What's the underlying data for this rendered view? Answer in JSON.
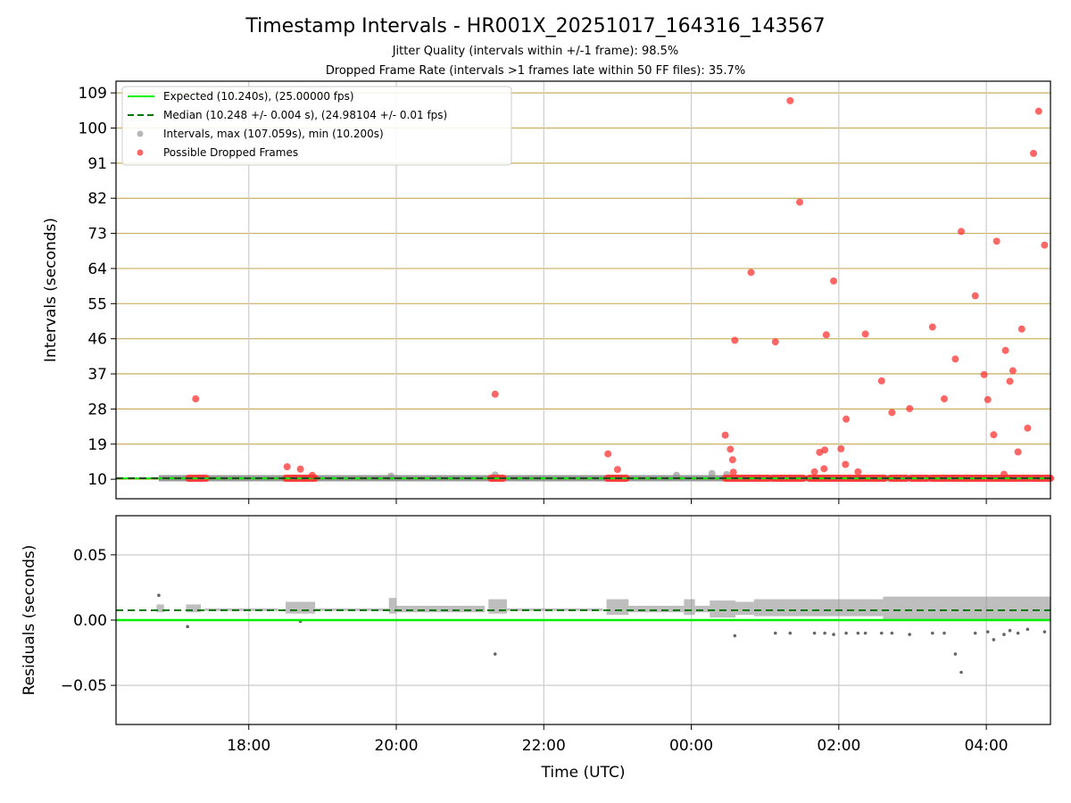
{
  "title": "Timestamp Intervals - HR001X_20251017_164316_143567",
  "subtitle1": "Jitter Quality (intervals within +/-1 frame): 98.5%",
  "subtitle2": "Dropped Frame Rate (intervals >1 frames late within 50 FF files): 35.7%",
  "colors": {
    "expected": "#00ee00",
    "median": "#007700",
    "intervals": "#888888",
    "dropped": "#ff3333",
    "hgrid": "#c8b060",
    "vgrid": "#cccccc"
  },
  "chart_data": [
    {
      "type": "scatter",
      "name": "intervals",
      "ylabel": "Intervals (seconds)",
      "xlabel": "",
      "ylim": [
        5.0,
        112.0
      ],
      "xlim": [
        16.2,
        28.87
      ],
      "yticks": [
        10,
        19,
        28,
        37,
        46,
        55,
        64,
        73,
        82,
        91,
        100,
        109
      ],
      "xticks": [
        18,
        20,
        22,
        24,
        26,
        28
      ],
      "xtick_labels": [
        "18:00",
        "20:00",
        "22:00",
        "00:00",
        "02:00",
        "04:00"
      ],
      "legend": {
        "position": "top-left",
        "entries": [
          "Expected (10.240s), (25.00000 fps)",
          "Median (10.248 +/- 0.004 s), (24.98104 +/- 0.01 fps)",
          "Intervals, max (107.059s), min (10.200s)",
          "Possible Dropped Frames"
        ]
      },
      "expected": 10.24,
      "median": 10.248,
      "interval_line": {
        "x_start": 16.78,
        "x_end": 28.87,
        "value": 10.25
      },
      "intervals_other": [
        [
          19.93,
          10.8
        ],
        [
          21.34,
          11.1
        ],
        [
          23.8,
          11.0
        ],
        [
          24.28,
          11.5
        ],
        [
          24.48,
          11.2
        ]
      ],
      "dropped_points": [
        [
          17.28,
          30.6
        ],
        [
          18.52,
          13.2
        ],
        [
          18.7,
          12.6
        ],
        [
          18.86,
          11.0
        ],
        [
          21.34,
          31.8
        ],
        [
          22.87,
          16.5
        ],
        [
          23.0,
          12.5
        ],
        [
          24.46,
          21.3
        ],
        [
          24.53,
          17.7
        ],
        [
          24.56,
          15.0
        ],
        [
          24.57,
          11.8
        ],
        [
          24.59,
          45.6
        ],
        [
          24.81,
          63.0
        ],
        [
          25.14,
          45.2
        ],
        [
          25.34,
          107.0
        ],
        [
          25.47,
          81.0
        ],
        [
          25.67,
          11.9
        ],
        [
          25.74,
          16.9
        ],
        [
          25.8,
          12.7
        ],
        [
          25.81,
          17.5
        ],
        [
          25.83,
          47.0
        ],
        [
          25.93,
          60.8
        ],
        [
          26.03,
          17.8
        ],
        [
          26.09,
          13.8
        ],
        [
          26.1,
          25.4
        ],
        [
          26.26,
          11.9
        ],
        [
          26.36,
          47.2
        ],
        [
          26.58,
          35.2
        ],
        [
          26.72,
          27.1
        ],
        [
          26.96,
          28.1
        ],
        [
          27.27,
          49.0
        ],
        [
          27.43,
          30.6
        ],
        [
          27.58,
          40.8
        ],
        [
          27.66,
          73.5
        ],
        [
          27.85,
          57.0
        ],
        [
          27.97,
          36.8
        ],
        [
          28.02,
          30.4
        ],
        [
          28.1,
          21.4
        ],
        [
          28.14,
          71.0
        ],
        [
          28.24,
          11.3
        ],
        [
          28.26,
          43.0
        ],
        [
          28.32,
          35.1
        ],
        [
          28.36,
          37.8
        ],
        [
          28.43,
          17.0
        ],
        [
          28.48,
          48.5
        ],
        [
          28.56,
          23.1
        ],
        [
          28.64,
          93.5
        ],
        [
          28.71,
          104.3
        ],
        [
          28.79,
          70.0
        ]
      ],
      "dropped_clusters": [
        [
          17.18,
          17.42
        ],
        [
          18.5,
          18.9
        ],
        [
          21.28,
          21.45
        ],
        [
          22.86,
          23.12
        ],
        [
          24.46,
          25.05
        ],
        [
          25.1,
          25.52
        ],
        [
          25.6,
          26.62
        ],
        [
          26.7,
          26.92
        ],
        [
          26.98,
          27.2
        ],
        [
          27.25,
          28.87
        ]
      ],
      "dropped_value": 10.25
    },
    {
      "type": "scatter",
      "name": "residuals",
      "ylabel": "Residuals (seconds)",
      "xlabel": "Time (UTC)",
      "ylim": [
        -0.08,
        0.08
      ],
      "xlim": [
        16.2,
        28.87
      ],
      "yticks": [
        -0.05,
        0.0,
        0.05
      ],
      "ytick_labels": [
        "−0.05",
        "0.00",
        "0.05"
      ],
      "xticks": [
        18,
        20,
        22,
        24,
        26,
        28
      ],
      "xtick_labels": [
        "18:00",
        "20:00",
        "22:00",
        "00:00",
        "02:00",
        "04:00"
      ],
      "expected_residual": 0.0,
      "median_residual": 0.0075,
      "outliers": [
        [
          16.78,
          0.019
        ],
        [
          17.17,
          -0.005
        ],
        [
          18.7,
          -0.001
        ],
        [
          21.34,
          -0.026
        ],
        [
          24.59,
          -0.012
        ],
        [
          25.14,
          -0.01
        ],
        [
          25.34,
          -0.01
        ],
        [
          25.67,
          -0.01
        ],
        [
          25.81,
          -0.01
        ],
        [
          25.93,
          -0.011
        ],
        [
          26.1,
          -0.01
        ],
        [
          26.26,
          -0.01
        ],
        [
          26.36,
          -0.01
        ],
        [
          26.58,
          -0.01
        ],
        [
          26.72,
          -0.01
        ],
        [
          26.96,
          -0.011
        ],
        [
          27.27,
          -0.01
        ],
        [
          27.43,
          -0.01
        ],
        [
          27.58,
          -0.026
        ],
        [
          27.66,
          -0.04
        ],
        [
          27.85,
          -0.01
        ],
        [
          28.02,
          -0.009
        ],
        [
          28.1,
          -0.015
        ],
        [
          28.24,
          -0.011
        ],
        [
          28.32,
          -0.008
        ],
        [
          28.43,
          -0.01
        ],
        [
          28.56,
          -0.007
        ],
        [
          28.79,
          -0.009
        ]
      ],
      "band_segments": [
        [
          16.75,
          16.85,
          0.006,
          0.012
        ],
        [
          17.15,
          17.35,
          0.006,
          0.012
        ],
        [
          17.4,
          18.4,
          0.007,
          0.009
        ],
        [
          18.5,
          18.9,
          0.005,
          0.014
        ],
        [
          18.9,
          19.9,
          0.007,
          0.009
        ],
        [
          19.9,
          20.0,
          0.005,
          0.017
        ],
        [
          20.0,
          21.2,
          0.006,
          0.011
        ],
        [
          21.25,
          21.5,
          0.005,
          0.016
        ],
        [
          21.5,
          22.8,
          0.007,
          0.009
        ],
        [
          22.85,
          23.15,
          0.004,
          0.016
        ],
        [
          23.15,
          23.9,
          0.006,
          0.011
        ],
        [
          23.9,
          24.05,
          0.004,
          0.016
        ],
        [
          24.05,
          24.25,
          0.006,
          0.011
        ],
        [
          24.25,
          24.6,
          0.002,
          0.015
        ],
        [
          24.6,
          24.85,
          0.004,
          0.014
        ],
        [
          24.85,
          26.6,
          0.003,
          0.016
        ],
        [
          26.6,
          28.87,
          0.0,
          0.018
        ]
      ]
    }
  ]
}
